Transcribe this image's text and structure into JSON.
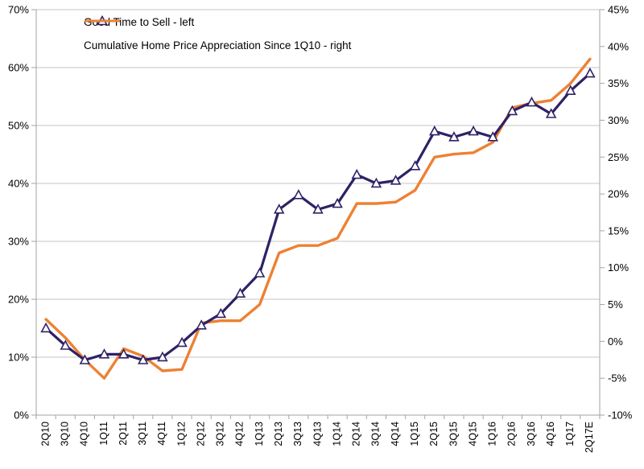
{
  "chart_data": {
    "type": "line",
    "title": "",
    "categories": [
      "2Q10",
      "3Q10",
      "4Q10",
      "1Q11",
      "2Q11",
      "3Q11",
      "4Q11",
      "1Q12",
      "2Q12",
      "3Q12",
      "4Q12",
      "1Q13",
      "2Q13",
      "3Q13",
      "4Q13",
      "1Q14",
      "2Q14",
      "3Q14",
      "4Q14",
      "1Q15",
      "2Q15",
      "3Q15",
      "4Q15",
      "1Q16",
      "2Q16",
      "3Q16",
      "4Q16",
      "1Q17",
      "2Q17E"
    ],
    "series": [
      {
        "name": "Good Time to Sell",
        "legend_label": "Good Time to Sell - left",
        "axis": "left",
        "color": "#2E2166",
        "marker": "open-triangle",
        "values": [
          15,
          12,
          9.5,
          10.5,
          10.5,
          9.5,
          10,
          12.5,
          15.5,
          17.5,
          21,
          24.5,
          35.5,
          38,
          35.5,
          36.5,
          41.5,
          40,
          40.5,
          43,
          49,
          48,
          49,
          48,
          52.5,
          54,
          52,
          56,
          59
        ]
      },
      {
        "name": "Cumulative Home Price Appreciation Since 1Q10",
        "legend_label": "Cumulative Home Price Appreciation Since 1Q10 - right",
        "axis": "right",
        "color": "#ED8133",
        "marker": "none",
        "values": [
          3,
          0.5,
          -2.5,
          -5,
          -1,
          -2,
          -4,
          -3.8,
          2.5,
          2.8,
          2.8,
          5,
          12,
          13,
          13,
          14,
          18.7,
          18.7,
          18.9,
          20.5,
          25,
          25.4,
          25.6,
          27,
          31.7,
          32.3,
          32.7,
          35,
          38.3
        ]
      }
    ],
    "left_axis": {
      "min": 0,
      "max": 70,
      "step": 10,
      "tick_labels_top_down": [
        "70%",
        "60%",
        "50%",
        "40%",
        "30%",
        "20%",
        "10%",
        "0%"
      ]
    },
    "right_axis": {
      "min": -10,
      "max": 45,
      "step": 5,
      "tick_labels_top_down": [
        "45%",
        "40%",
        "35%",
        "30%",
        "25%",
        "20%",
        "15%",
        "10%",
        "5%",
        "0%",
        "-5%",
        "-10%"
      ]
    },
    "grid": "horizontal-only",
    "legend_position": "top-left-inside",
    "colors": {
      "gridline": "#C6C6C6",
      "axis_line": "#A3A3A3",
      "tick_text": "#000000",
      "background": "#FFFFFF",
      "series_left": "#2E2166",
      "series_right": "#ED8133"
    }
  }
}
